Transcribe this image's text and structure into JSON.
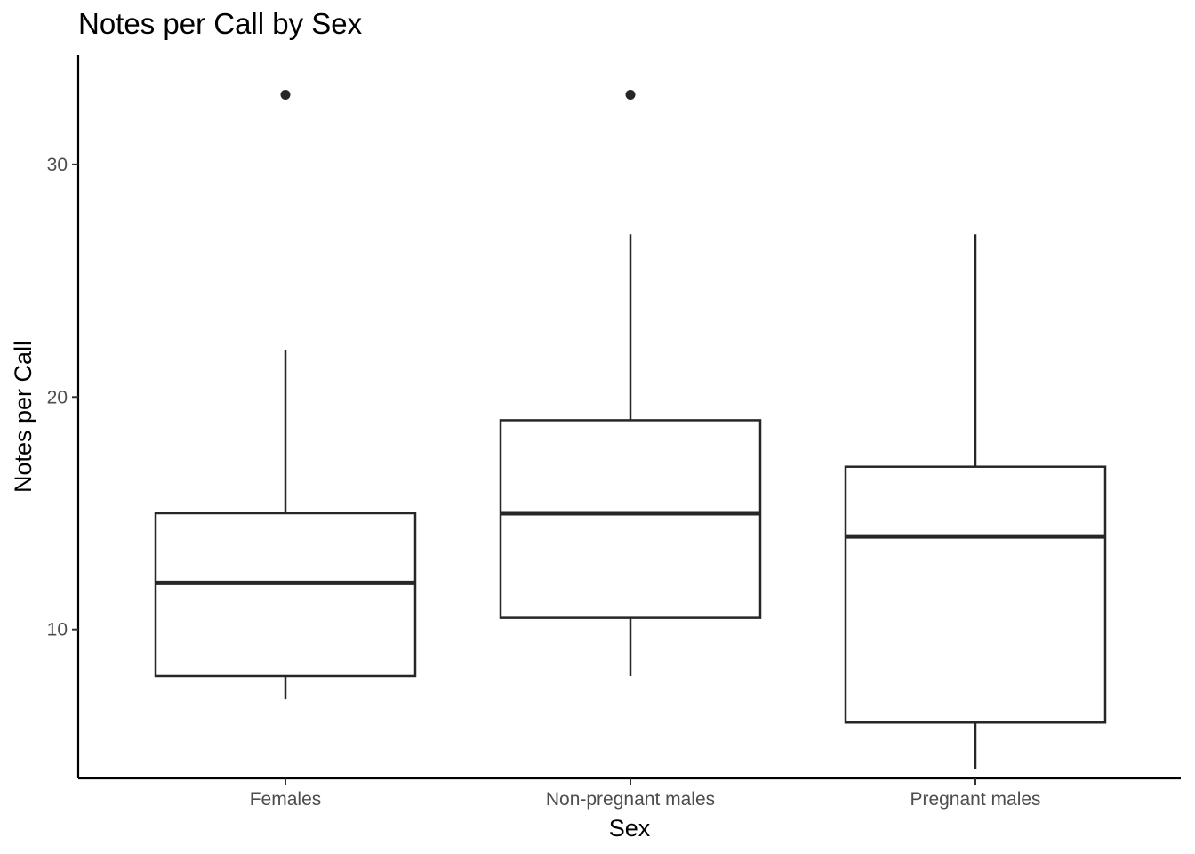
{
  "chart_data": {
    "type": "boxplot",
    "title": "Notes per Call by Sex",
    "xlabel": "Sex",
    "ylabel": "Notes per Call",
    "categories": [
      "Females",
      "Non-pregnant males",
      "Pregnant males"
    ],
    "yticks": [
      10,
      20,
      30
    ],
    "ytick_labels": [
      "10",
      "20",
      "30"
    ],
    "ylim": [
      3.6,
      34.7
    ],
    "grid": false,
    "legend": "none",
    "boxes": [
      {
        "category": "Females",
        "whisker_low": 7,
        "q1": 8,
        "median": 12,
        "q3": 15,
        "whisker_high": 22,
        "outliers": [
          33
        ]
      },
      {
        "category": "Non-pregnant males",
        "whisker_low": 8,
        "q1": 10.5,
        "median": 15,
        "q3": 19,
        "whisker_high": 27,
        "outliers": [
          33
        ]
      },
      {
        "category": "Pregnant males",
        "whisker_low": 4,
        "q1": 6,
        "median": 14,
        "q3": 17,
        "whisker_high": 27,
        "outliers": []
      }
    ],
    "colors": {
      "line": "#262626",
      "axis": "#000000",
      "tick_text": "#4d4d4d",
      "box_fill": "#ffffff"
    }
  }
}
